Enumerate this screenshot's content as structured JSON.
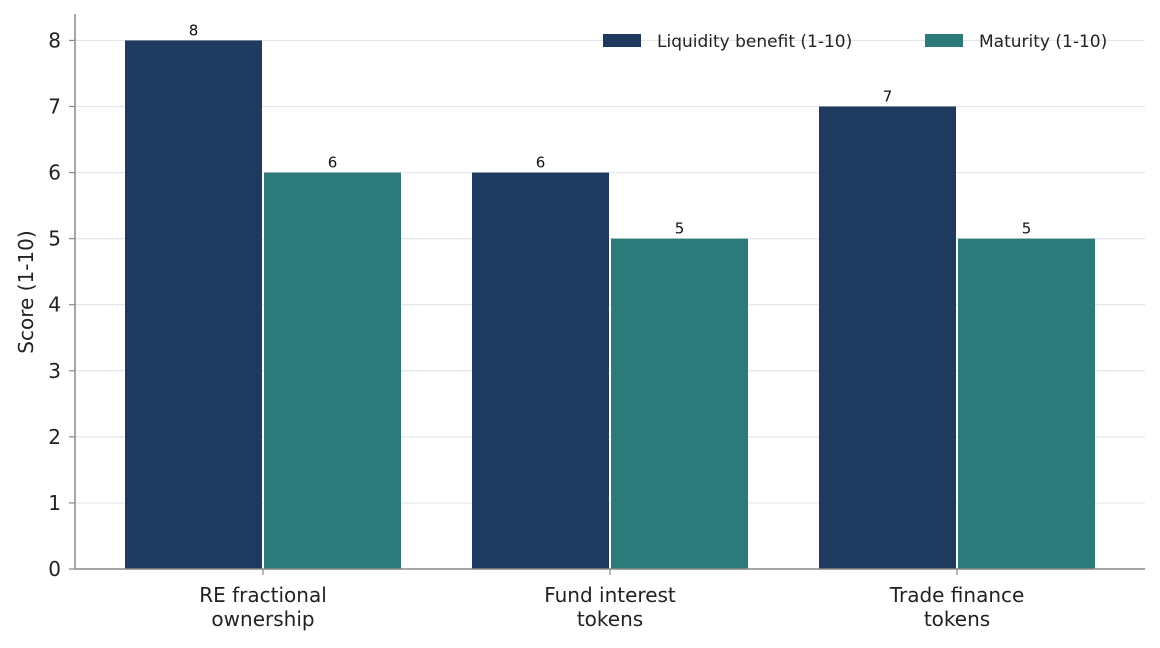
{
  "chart_data": {
    "type": "bar",
    "categories": [
      [
        "RE fractional",
        "ownership"
      ],
      [
        "Fund interest",
        "tokens"
      ],
      [
        "Trade finance",
        "tokens"
      ]
    ],
    "series": [
      {
        "name": "Liquidity benefit (1-10)",
        "values": [
          8,
          6,
          7
        ],
        "color": "#1f3a5f"
      },
      {
        "name": "Maturity (1-10)",
        "values": [
          6,
          5,
          5
        ],
        "color": "#2d7a7a"
      }
    ],
    "ylabel": "Score (1-10)",
    "xlabel": "",
    "ylim": [
      0,
      8.4
    ],
    "yticks": [
      0,
      1,
      2,
      3,
      4,
      5,
      6,
      7,
      8
    ],
    "grid": "horizontal",
    "legend": "top-right",
    "colors": {
      "grid": "#e3e6ea",
      "axis": "#888888"
    }
  }
}
